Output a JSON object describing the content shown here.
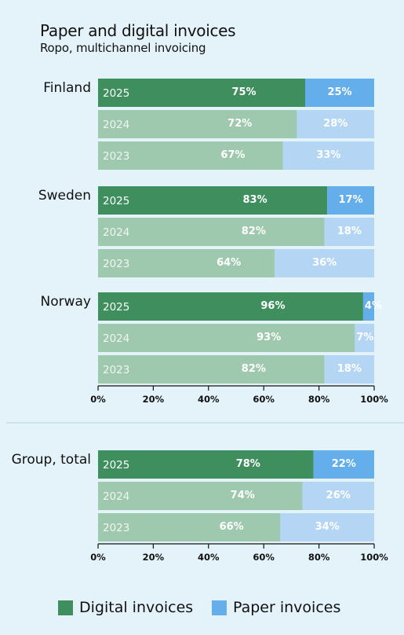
{
  "title": "Paper and digital invoices",
  "subtitle": "Ropo, multichannel invoicing",
  "colors": {
    "digital_current": "#3f8f5e",
    "digital_past": "#9fc9ae",
    "paper_current": "#64aeec",
    "paper_past": "#b4d6f4",
    "year_label_current": "#ffffff",
    "year_label_past": "#f0f6f2"
  },
  "legend": [
    {
      "name": "Digital invoices",
      "color": "#3f8f5e"
    },
    {
      "name": "Paper invoices",
      "color": "#64aeec"
    }
  ],
  "chart_data": [
    {
      "type": "bar",
      "orientation": "horizontal",
      "stacked": true,
      "groups": [
        {
          "name": "Finland",
          "rows": [
            {
              "year": "2025",
              "digital": 75,
              "paper": 25
            },
            {
              "year": "2024",
              "digital": 72,
              "paper": 28
            },
            {
              "year": "2023",
              "digital": 67,
              "paper": 33
            }
          ]
        },
        {
          "name": "Sweden",
          "rows": [
            {
              "year": "2025",
              "digital": 83,
              "paper": 17
            },
            {
              "year": "2024",
              "digital": 82,
              "paper": 18
            },
            {
              "year": "2023",
              "digital": 64,
              "paper": 36
            }
          ]
        },
        {
          "name": "Norway",
          "rows": [
            {
              "year": "2025",
              "digital": 96,
              "paper": 4
            },
            {
              "year": "2024",
              "digital": 93,
              "paper": 7
            },
            {
              "year": "2023",
              "digital": 82,
              "paper": 18
            }
          ]
        }
      ],
      "xlim": [
        0,
        100
      ],
      "xticks": [
        "0%",
        "20%",
        "40%",
        "60%",
        "80%",
        "100%"
      ]
    },
    {
      "type": "bar",
      "orientation": "horizontal",
      "stacked": true,
      "groups": [
        {
          "name": "Group, total",
          "rows": [
            {
              "year": "2025",
              "digital": 78,
              "paper": 22
            },
            {
              "year": "2024",
              "digital": 74,
              "paper": 26
            },
            {
              "year": "2023",
              "digital": 66,
              "paper": 34
            }
          ]
        }
      ],
      "xlim": [
        0,
        100
      ],
      "xticks": [
        "0%",
        "20%",
        "40%",
        "60%",
        "80%",
        "100%"
      ]
    }
  ]
}
